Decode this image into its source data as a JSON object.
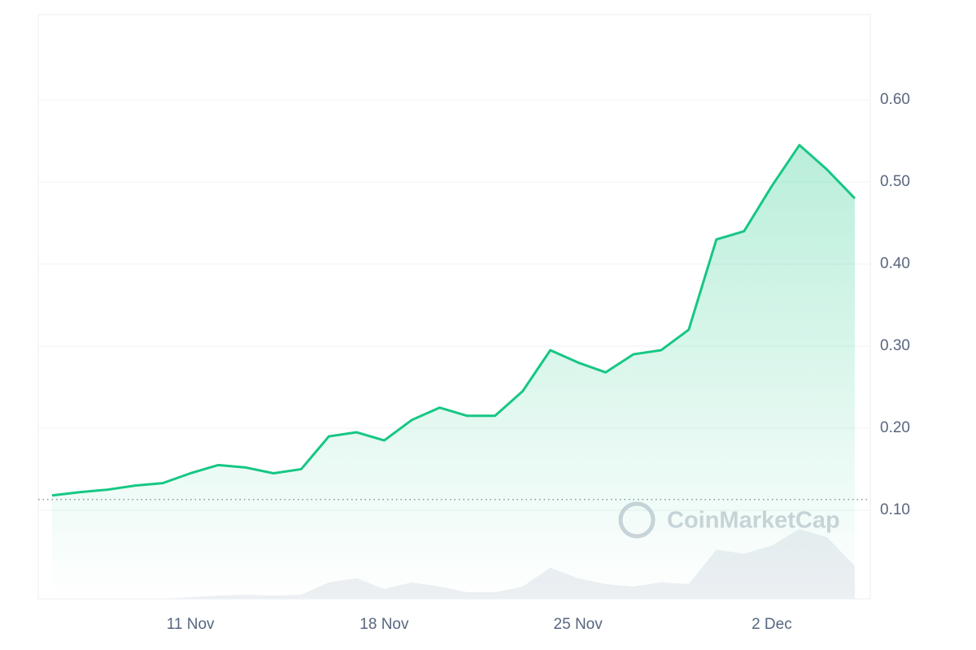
{
  "chart_data": {
    "type": "line",
    "watermark": "CoinMarketCap",
    "categories": [
      null,
      null,
      null,
      null,
      null,
      "11 Nov",
      null,
      null,
      null,
      null,
      null,
      null,
      "18 Nov",
      null,
      null,
      null,
      null,
      null,
      null,
      "25 Nov",
      null,
      null,
      null,
      null,
      null,
      null,
      "2 Dec",
      null,
      null,
      null
    ],
    "series": [
      {
        "color": "#16c784",
        "values": [
          0.118,
          0.122,
          0.125,
          0.13,
          0.133,
          0.145,
          0.155,
          0.152,
          0.145,
          0.15,
          0.19,
          0.195,
          0.185,
          0.21,
          0.225,
          0.215,
          0.215,
          0.245,
          0.295,
          0.28,
          0.268,
          0.29,
          0.295,
          0.32,
          0.43,
          0.44,
          0.495,
          0.545,
          0.515,
          0.48
        ]
      }
    ],
    "volume": {
      "color": "#eceff3",
      "values": [
        0,
        0,
        0,
        0,
        0,
        0.002,
        0.004,
        0.005,
        0.004,
        0.005,
        0.02,
        0.025,
        0.012,
        0.02,
        0.015,
        0.008,
        0.008,
        0.015,
        0.038,
        0.025,
        0.018,
        0.015,
        0.02,
        0.018,
        0.06,
        0.055,
        0.065,
        0.085,
        0.075,
        0.04
      ]
    },
    "reference_line": 0.113,
    "ylim": [
      -0.008,
      0.704
    ],
    "yticks": [
      {
        "value": 0.1,
        "label": "0.10"
      },
      {
        "value": 0.2,
        "label": "0.20"
      },
      {
        "value": 0.3,
        "label": "0.30"
      },
      {
        "value": 0.4,
        "label": "0.40"
      },
      {
        "value": 0.5,
        "label": "0.50"
      },
      {
        "value": 0.6,
        "label": "0.60"
      }
    ],
    "grid": true
  }
}
